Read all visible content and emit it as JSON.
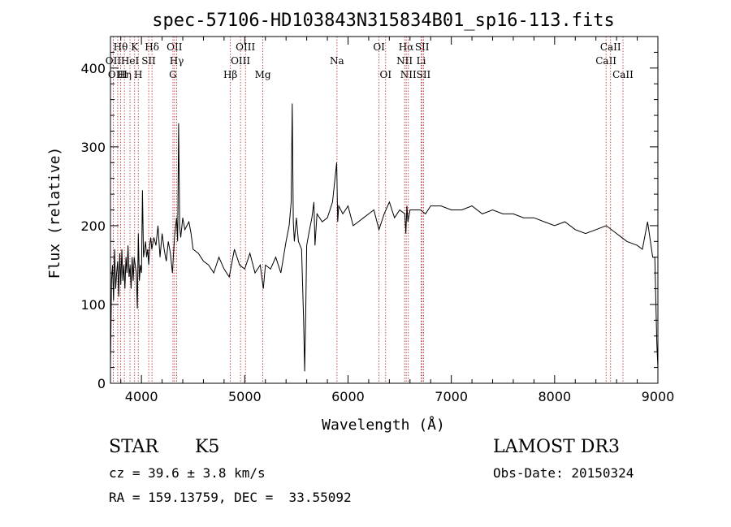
{
  "chart_data": {
    "type": "line",
    "title": "spec-57106-HD103843N315834B01_sp16-113.fits",
    "xlabel": "Wavelength (Å)",
    "ylabel": "Flux (relative)",
    "xlim": [
      3700,
      9000
    ],
    "ylim": [
      0,
      440
    ],
    "xticks": [
      4000,
      5000,
      6000,
      7000,
      8000,
      9000
    ],
    "yticks": [
      0,
      100,
      200,
      300,
      400
    ],
    "grid": false,
    "line_color": "#000000",
    "marker_color": "#b22222",
    "series": [
      {
        "x": [
          3700,
          3710,
          3720,
          3730,
          3740,
          3750,
          3760,
          3770,
          3780,
          3790,
          3800,
          3810,
          3820,
          3830,
          3840,
          3850,
          3860,
          3870,
          3880,
          3890,
          3900,
          3910,
          3920,
          3930,
          3940,
          3950,
          3960,
          3970,
          3980,
          3990,
          4000,
          4010,
          4020,
          4030,
          4040,
          4050,
          4060,
          4070,
          4080,
          4090,
          4100,
          4120,
          4140,
          4160,
          4180,
          4200,
          4220,
          4240,
          4260,
          4280,
          4300,
          4320,
          4340,
          4350,
          4360,
          4370,
          4380,
          4400,
          4420,
          4440,
          4460,
          4480,
          4500,
          4550,
          4600,
          4650,
          4700,
          4750,
          4800,
          4850,
          4900,
          4950,
          5000,
          5050,
          5100,
          5150,
          5180,
          5200,
          5250,
          5300,
          5350,
          5400,
          5430,
          5450,
          5460,
          5470,
          5480,
          5500,
          5520,
          5550,
          5570,
          5580,
          5590,
          5600,
          5620,
          5650,
          5670,
          5680,
          5700,
          5750,
          5800,
          5850,
          5890,
          5900,
          5910,
          5950,
          6000,
          6050,
          6100,
          6150,
          6200,
          6250,
          6300,
          6350,
          6400,
          6450,
          6500,
          6550,
          6560,
          6570,
          6580,
          6600,
          6650,
          6700,
          6750,
          6800,
          6900,
          7000,
          7100,
          7200,
          7300,
          7400,
          7500,
          7600,
          7700,
          7800,
          7900,
          8000,
          8100,
          8200,
          8300,
          8400,
          8500,
          8600,
          8700,
          8800,
          8850,
          8900,
          8950,
          8970,
          8990,
          9000
        ],
        "values": [
          20,
          130,
          150,
          105,
          170,
          120,
          140,
          155,
          110,
          165,
          125,
          170,
          130,
          150,
          120,
          160,
          140,
          175,
          135,
          150,
          120,
          160,
          130,
          160,
          150,
          140,
          95,
          190,
          130,
          150,
          140,
          245,
          160,
          170,
          180,
          160,
          170,
          150,
          175,
          185,
          170,
          185,
          175,
          200,
          160,
          190,
          170,
          155,
          180,
          165,
          140,
          185,
          210,
          180,
          330,
          200,
          185,
          210,
          195,
          200,
          205,
          190,
          170,
          165,
          155,
          150,
          140,
          160,
          145,
          135,
          170,
          150,
          145,
          165,
          140,
          150,
          120,
          150,
          145,
          160,
          140,
          180,
          200,
          230,
          355,
          205,
          180,
          210,
          180,
          170,
          80,
          15,
          90,
          175,
          190,
          210,
          230,
          175,
          215,
          205,
          210,
          230,
          280,
          205,
          225,
          215,
          225,
          200,
          205,
          210,
          215,
          220,
          195,
          215,
          230,
          210,
          220,
          215,
          190,
          225,
          205,
          220,
          220,
          220,
          215,
          225,
          225,
          220,
          220,
          225,
          215,
          220,
          215,
          215,
          210,
          210,
          205,
          200,
          205,
          195,
          190,
          195,
          200,
          190,
          180,
          175,
          170,
          205,
          160,
          160,
          50,
          20
        ]
      }
    ],
    "lines": [
      {
        "label": "Hθ",
        "x": 3798,
        "row": 1
      },
      {
        "label": "OII",
        "x": 3727,
        "row": 2
      },
      {
        "label": "OIII",
        "x": 3770,
        "row": 3
      },
      {
        "label": "K",
        "x": 3934,
        "row": 1
      },
      {
        "label": "H",
        "x": 3969,
        "row": 3
      },
      {
        "label": "Hη",
        "x": 3835,
        "row": 3
      },
      {
        "label": "HeI",
        "x": 3889,
        "row": 2
      },
      {
        "label": "SII",
        "x": 4070,
        "row": 2
      },
      {
        "label": "Hδ",
        "x": 4102,
        "row": 1
      },
      {
        "label": "OII",
        "x": 4320,
        "row": 1
      },
      {
        "label": "Hγ",
        "x": 4341,
        "row": 2
      },
      {
        "label": "G",
        "x": 4305,
        "row": 3
      },
      {
        "label": "Hβ",
        "x": 4861,
        "row": 3
      },
      {
        "label": "OIII",
        "x": 5007,
        "row": 1
      },
      {
        "label": "OIII",
        "x": 4959,
        "row": 2
      },
      {
        "label": "Mg",
        "x": 5175,
        "row": 3
      },
      {
        "label": "Na",
        "x": 5893,
        "row": 2
      },
      {
        "label": "OI",
        "x": 6300,
        "row": 1
      },
      {
        "label": "OI",
        "x": 6364,
        "row": 3
      },
      {
        "label": "Hα",
        "x": 6563,
        "row": 1
      },
      {
        "label": "NII",
        "x": 6548,
        "row": 2
      },
      {
        "label": "NII",
        "x": 6584,
        "row": 3
      },
      {
        "label": "SII",
        "x": 6717,
        "row": 1
      },
      {
        "label": "Li",
        "x": 6708,
        "row": 2
      },
      {
        "label": "SII",
        "x": 6731,
        "row": 3
      },
      {
        "label": "CaII",
        "x": 8498,
        "row": 2
      },
      {
        "label": "CaII",
        "x": 8542,
        "row": 1
      },
      {
        "label": "CaII",
        "x": 8662,
        "row": 3
      }
    ]
  },
  "info": {
    "class": "STAR",
    "subclass": "K5",
    "survey": "LAMOST DR3",
    "cz": "cz = 39.6 ± 3.8 km/s",
    "obs_date": "Obs-Date: 20150324",
    "radec": "RA = 159.13759, DEC =  33.55092"
  }
}
